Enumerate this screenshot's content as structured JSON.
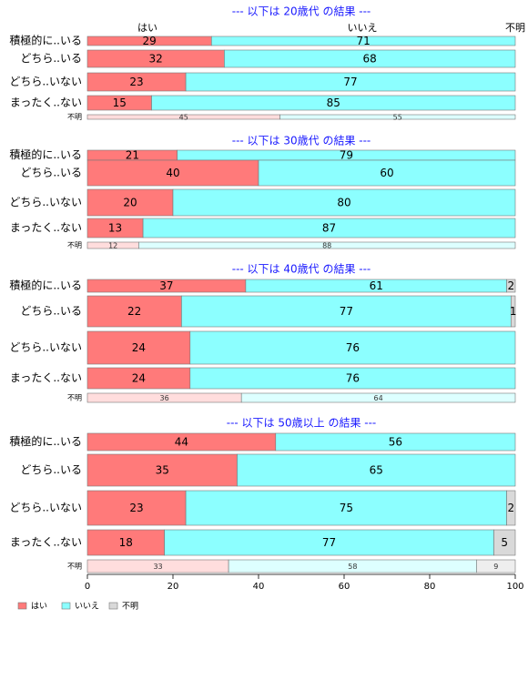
{
  "chart_data": {
    "type": "bar",
    "orientation": "horizontal",
    "stacked": "percent",
    "xlim": [
      0,
      100
    ],
    "xticks": [
      "0",
      "20",
      "40",
      "60",
      "80",
      "100"
    ],
    "column_headers": [
      "はい",
      "いいえ",
      "不明"
    ],
    "legend": {
      "position": "bottom-left",
      "items": [
        {
          "label": "はい",
          "color": "#FF7A7A"
        },
        {
          "label": "いいえ",
          "color": "#8CFFFF"
        },
        {
          "label": "不明",
          "color": "#D9D9D9"
        }
      ]
    },
    "panels": [
      {
        "title": "--- 以下は 20歳代 の結果 ---",
        "show_headers": true,
        "rows": [
          {
            "label": "積極的に..いる",
            "values": [
              29,
              71,
              0
            ],
            "small": false
          },
          {
            "label": "どちら..いる",
            "values": [
              32,
              68,
              0
            ],
            "small": false
          },
          {
            "label": "どちら..いない",
            "values": [
              23,
              77,
              0
            ],
            "small": false
          },
          {
            "label": "まったく..ない",
            "values": [
              15,
              85,
              0
            ],
            "small": false
          },
          {
            "label": "不明",
            "values": [
              45,
              55,
              0
            ],
            "small": true
          }
        ]
      },
      {
        "title": "--- 以下は 30歳代 の結果 ---",
        "show_headers": false,
        "rows": [
          {
            "label": "積極的に..いる",
            "values": [
              21,
              79,
              0
            ],
            "small": false
          },
          {
            "label": "どちら..いる",
            "values": [
              40,
              60,
              0
            ],
            "small": false
          },
          {
            "label": "どちら..いない",
            "values": [
              20,
              80,
              0
            ],
            "small": false
          },
          {
            "label": "まったく..ない",
            "values": [
              13,
              87,
              0
            ],
            "small": false
          },
          {
            "label": "不明",
            "values": [
              12,
              88,
              0
            ],
            "small": true
          }
        ]
      },
      {
        "title": "--- 以下は 40歳代 の結果 ---",
        "show_headers": false,
        "rows": [
          {
            "label": "積極的に..いる",
            "values": [
              37,
              61,
              2
            ],
            "small": false
          },
          {
            "label": "どちら..いる",
            "values": [
              22,
              77,
              1
            ],
            "small": false
          },
          {
            "label": "どちら..いない",
            "values": [
              24,
              76,
              0
            ],
            "small": false
          },
          {
            "label": "まったく..ない",
            "values": [
              24,
              76,
              0
            ],
            "small": false
          },
          {
            "label": "不明",
            "values": [
              36,
              64,
              0
            ],
            "small": true
          }
        ]
      },
      {
        "title": "--- 以下は 50歳以上 の結果 ---",
        "show_headers": false,
        "rows": [
          {
            "label": "積極的に..いる",
            "values": [
              44,
              56,
              0
            ],
            "small": false
          },
          {
            "label": "どちら..いる",
            "values": [
              35,
              65,
              0
            ],
            "small": false
          },
          {
            "label": "どちら..いない",
            "values": [
              23,
              75,
              2
            ],
            "small": false
          },
          {
            "label": "まったく..ない",
            "values": [
              18,
              77,
              5
            ],
            "small": false
          },
          {
            "label": "不明",
            "values": [
              33,
              58,
              9
            ],
            "small": true
          }
        ]
      }
    ]
  }
}
